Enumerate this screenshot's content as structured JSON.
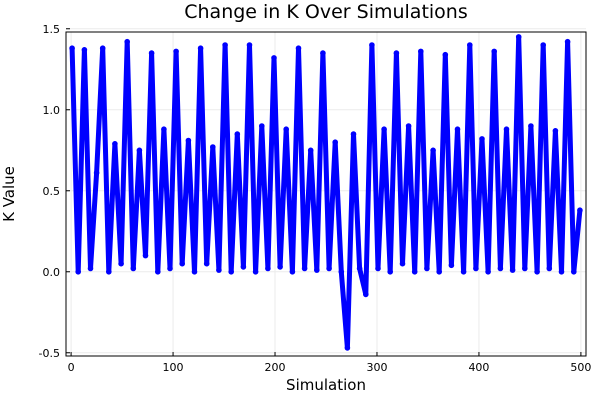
{
  "chart_data": {
    "type": "line",
    "title": "Change in K Over Simulations",
    "xlabel": "Simulation",
    "ylabel": "K Value",
    "xlim": [
      -5,
      505
    ],
    "ylim": [
      -0.52,
      1.48
    ],
    "xticks": [
      0,
      100,
      200,
      300,
      400,
      500
    ],
    "yticks": [
      -0.5,
      0.0,
      0.5,
      1.0,
      1.5
    ],
    "xtick_labels": [
      "0",
      "100",
      "200",
      "300",
      "400",
      "500"
    ],
    "ytick_labels": [
      "-0.5",
      "0.0",
      "0.5",
      "1.0",
      "1.5"
    ],
    "grid": true,
    "legend": "none",
    "series": [
      {
        "color": "#0000ff",
        "x": [
          1,
          7,
          13,
          19,
          25,
          31,
          37,
          43,
          49,
          55,
          61,
          67,
          73,
          79,
          85,
          91,
          97,
          103,
          109,
          115,
          121,
          127,
          133,
          139,
          145,
          151,
          157,
          163,
          169,
          175,
          181,
          187,
          193,
          199,
          205,
          211,
          217,
          223,
          229,
          235,
          241,
          247,
          253,
          259,
          265,
          271,
          277,
          283,
          289,
          295,
          301,
          307,
          313,
          319,
          325,
          331,
          337,
          343,
          349,
          355,
          361,
          367,
          373,
          379,
          385,
          391,
          397,
          403,
          409,
          415,
          421,
          427,
          433,
          439,
          445,
          451,
          457,
          463,
          469,
          475,
          481,
          487,
          493,
          499
        ],
        "y": [
          1.38,
          0.0,
          1.37,
          0.02,
          0.61,
          1.38,
          0.0,
          0.79,
          0.05,
          1.42,
          0.02,
          0.75,
          0.1,
          1.35,
          0.0,
          0.88,
          0.02,
          1.36,
          0.05,
          0.81,
          0.0,
          1.38,
          0.05,
          0.77,
          0.01,
          1.4,
          0.0,
          0.85,
          0.03,
          1.4,
          0.0,
          0.9,
          0.02,
          1.32,
          0.03,
          0.88,
          0.0,
          1.38,
          0.02,
          0.75,
          0.01,
          1.35,
          0.02,
          0.8,
          0.0,
          -0.47,
          0.85,
          0.02,
          -0.14,
          1.4,
          0.02,
          0.88,
          0.0,
          1.35,
          0.05,
          0.9,
          0.0,
          1.36,
          0.02,
          0.75,
          0.0,
          1.34,
          0.04,
          0.88,
          0.0,
          1.4,
          0.02,
          0.82,
          0.0,
          1.36,
          0.02,
          0.88,
          0.01,
          1.45,
          0.02,
          0.9,
          0.0,
          1.4,
          0.02,
          0.87,
          0.0,
          1.42,
          0.0,
          0.38
        ]
      }
    ]
  }
}
